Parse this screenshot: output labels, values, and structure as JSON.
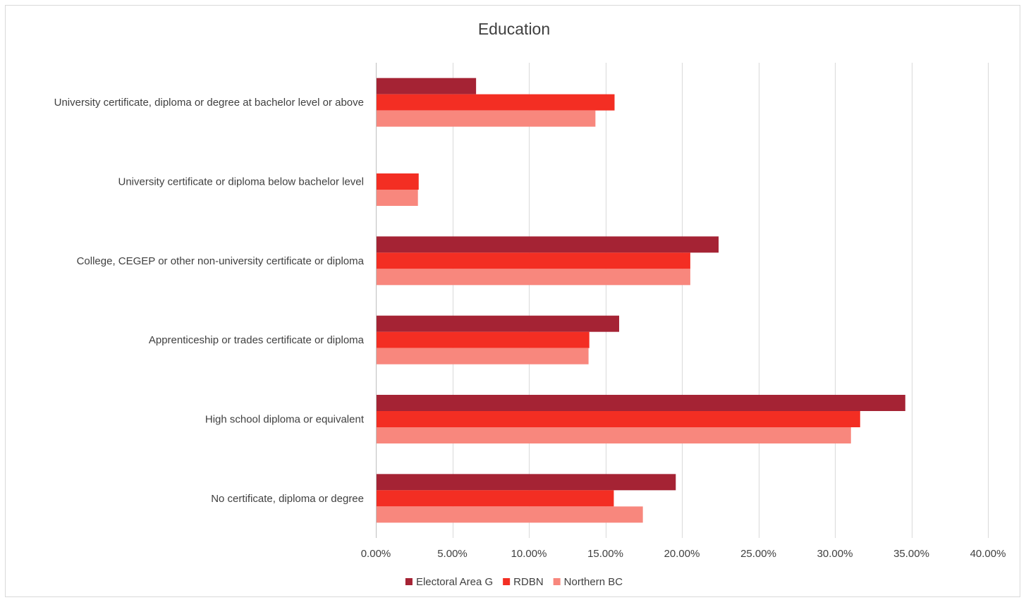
{
  "chart_data": {
    "type": "bar",
    "orientation": "horizontal",
    "title": "Education",
    "xlabel": "",
    "ylabel": "",
    "xlim": [
      0,
      0.4
    ],
    "x_ticks": [
      0,
      0.05,
      0.1,
      0.15,
      0.2,
      0.25,
      0.3,
      0.35,
      0.4
    ],
    "x_tick_labels": [
      "0.00%",
      "5.00%",
      "10.00%",
      "15.00%",
      "20.00%",
      "25.00%",
      "30.00%",
      "35.00%",
      "40.00%"
    ],
    "grid": "vertical",
    "legend_position": "bottom",
    "categories": [
      "University certificate, diploma or degree at bachelor level or above",
      "University certificate or diploma below bachelor level",
      "College, CEGEP or other non-university certificate or diploma",
      "Apprenticeship or trades certificate or diploma",
      "High school diploma or equivalent",
      "No certificate, diploma or degree"
    ],
    "series": [
      {
        "name": "Electoral Area G",
        "color": "#a52334",
        "values": [
          0.0655,
          0.0,
          0.224,
          0.159,
          0.346,
          0.196
        ]
      },
      {
        "name": "RDBN",
        "color": "#f32e23",
        "values": [
          0.156,
          0.028,
          0.2055,
          0.1395,
          0.3165,
          0.1555
        ]
      },
      {
        "name": "Northern BC",
        "color": "#f8877d",
        "values": [
          0.1435,
          0.0275,
          0.2055,
          0.139,
          0.3105,
          0.1745
        ]
      }
    ]
  }
}
